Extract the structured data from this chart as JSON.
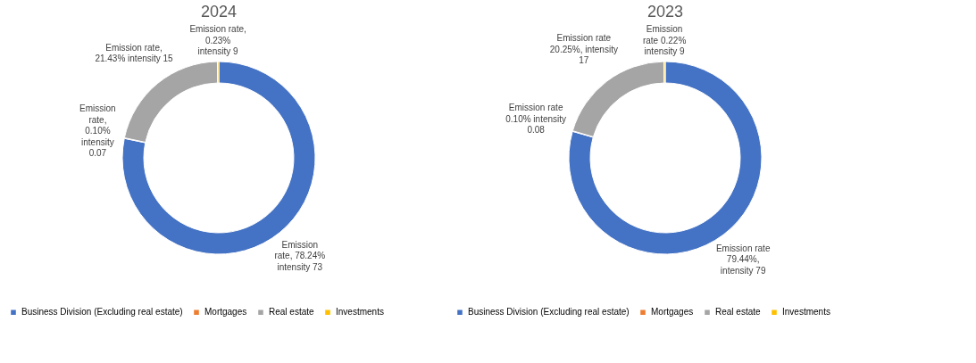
{
  "chart_data": [
    {
      "type": "donut",
      "title": "2024",
      "categories": [
        "Business Division (Excluding real estate)",
        "Mortgages",
        "Real estate",
        "Investments"
      ],
      "values": [
        78.24,
        0.1,
        21.43,
        0.23
      ],
      "colors": [
        "#4472c4",
        "#ed7d31",
        "#a5a5a5",
        "#ffc000"
      ],
      "value_labels": [
        "Emission\nrate, 78.24%\nintensity 73",
        "Emission\nrate,\n0.10%\nintensity\n0.07",
        "Emission rate,\n21.43% intensity 15",
        "Emission rate,\n0.23%\nintensity 9"
      ],
      "legend": "bottom"
    },
    {
      "type": "donut",
      "title": "2023",
      "categories": [
        "Business Division (Excluding real estate)",
        "Mortgages",
        "Real estate",
        "Investments"
      ],
      "values": [
        79.44,
        0.1,
        20.25,
        0.22
      ],
      "colors": [
        "#4472c4",
        "#ed7d31",
        "#a5a5a5",
        "#ffc000"
      ],
      "value_labels": [
        "Emission rate\n79.44%,\nintensity 79",
        "Emission rate\n0.10% intensity\n0.08",
        "Emission rate\n20.25%, intensity\n17",
        "Emission\nrate 0.22%\nintensity 9"
      ],
      "legend": "bottom"
    }
  ]
}
